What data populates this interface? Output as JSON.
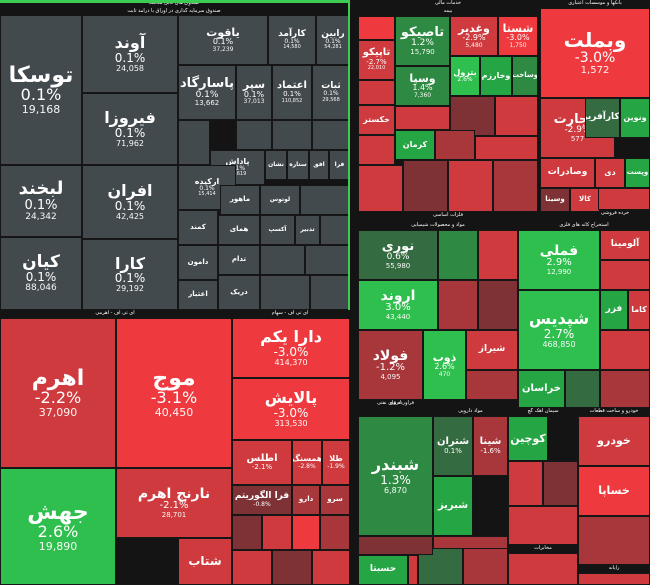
{
  "colors": {
    "neutral": "#424a4e",
    "strong_red": "#ee3a3e",
    "red": "#cf3a3e",
    "mid_red": "#a8373b",
    "dark_red": "#7e3236",
    "light_green": "#2fbf4e",
    "green": "#26a544",
    "mid_green": "#2e8a43",
    "dark_green": "#356b40",
    "background": "#141414",
    "green_border": "#3dcc52"
  },
  "sections": [
    {
      "id": "fund",
      "label": "صندوق های قابل معامله"
    },
    {
      "id": "fund_sub",
      "label": "صندوق سرمایه گذاری در اوراق با درآمد ثابت"
    },
    {
      "id": "finance",
      "label": "خدمات مالی"
    },
    {
      "id": "insurance",
      "label": "بیمه"
    },
    {
      "id": "banks",
      "label": "بانکها و موسسات اعتباری"
    },
    {
      "id": "basic_metals",
      "label": "فلزات اساسی"
    },
    {
      "id": "chem",
      "label": "مواد و محصولات شیمیایی"
    },
    {
      "id": "petro",
      "label": "فراورده های نفتی"
    },
    {
      "id": "metal_ore",
      "label": "استخراج کانه های فلزی"
    },
    {
      "id": "ip",
      "label": "ای تی اف - اهرمی"
    },
    {
      "id": "stocks_etf",
      "label": "ای تی اف - سهام"
    },
    {
      "id": "utilities",
      "label": "انرژی"
    },
    {
      "id": "auto",
      "label": "خودرو و ساخت قطعات"
    },
    {
      "id": "pharma",
      "label": "مواد دارویی"
    },
    {
      "id": "cement",
      "label": "سیمان آهک گچ"
    },
    {
      "id": "food",
      "label": "محصولات غذایی"
    },
    {
      "id": "construction",
      "label": "ساختمان"
    },
    {
      "id": "tech",
      "label": "رایانه"
    },
    {
      "id": "holding",
      "label": "چند رشته ای صنعتی"
    },
    {
      "id": "telecom",
      "label": "مخابرات"
    },
    {
      "id": "transport",
      "label": "حمل و نقل"
    },
    {
      "id": "retail",
      "label": "خرده فروشی"
    }
  ],
  "tiles": [
    {
      "id": "toska",
      "symbol": "توسکا",
      "change": "0.1%",
      "volume": "19,168",
      "tone": "neutral"
    },
    {
      "id": "avand",
      "symbol": "آوند",
      "change": "0.1%",
      "volume": "24,058",
      "tone": "neutral"
    },
    {
      "id": "yaqut",
      "symbol": "یاقوت",
      "change": "0.1%",
      "volume": "37,239",
      "tone": "neutral"
    },
    {
      "id": "karamad",
      "symbol": "کارآمد",
      "change": "0.1%",
      "volume": "14,580",
      "tone": "neutral"
    },
    {
      "id": "rabin",
      "symbol": "رابین",
      "change": "0.1%",
      "volume": "54,281",
      "tone": "neutral"
    },
    {
      "id": "firooza",
      "symbol": "فیروزا",
      "change": "0.1%",
      "volume": "71,962",
      "tone": "neutral"
    },
    {
      "id": "pasargad",
      "symbol": "پاسارگاد",
      "change": "0.1%",
      "volume": "13,662",
      "tone": "neutral"
    },
    {
      "id": "separ",
      "symbol": "سپر",
      "change": "0.1%",
      "volume": "37,013",
      "tone": "neutral"
    },
    {
      "id": "etemad",
      "symbol": "اعتماد",
      "change": "0.1%",
      "volume": "110,852",
      "tone": "neutral"
    },
    {
      "id": "sabat",
      "symbol": "ثبات",
      "change": "0.1%",
      "volume": "29,568",
      "tone": "neutral"
    },
    {
      "id": "labkhand",
      "symbol": "لبخند",
      "change": "0.1%",
      "volume": "24,342",
      "tone": "neutral"
    },
    {
      "id": "afran",
      "symbol": "افران",
      "change": "0.1%",
      "volume": "42,425",
      "tone": "neutral"
    },
    {
      "id": "kian",
      "symbol": "کیان",
      "change": "0.1%",
      "volume": "88,046",
      "tone": "neutral"
    },
    {
      "id": "kara",
      "symbol": "کارا",
      "change": "0.1%",
      "volume": "29,192",
      "tone": "neutral"
    },
    {
      "id": "padash",
      "symbol": "پاداش",
      "change": "0.1%",
      "volume": "22,619",
      "tone": "neutral"
    },
    {
      "id": "arkideh",
      "symbol": "ارکیده",
      "change": "0.1%",
      "volume": "15,414",
      "tone": "neutral"
    },
    {
      "id": "mahoor",
      "symbol": "ماهور",
      "change": "",
      "volume": "",
      "tone": "neutral"
    },
    {
      "id": "nashan",
      "symbol": "نشان",
      "change": "",
      "volume": "",
      "tone": "neutral"
    },
    {
      "id": "setare",
      "symbol": "ستاره",
      "change": "",
      "volume": "",
      "tone": "neutral"
    },
    {
      "id": "ofogh",
      "symbol": "افق",
      "change": "",
      "volume": "",
      "tone": "neutral"
    },
    {
      "id": "fara",
      "symbol": "فرا",
      "change": "",
      "volume": "",
      "tone": "neutral"
    },
    {
      "id": "lotus",
      "symbol": "لوتوس",
      "change": "",
      "volume": "",
      "tone": "neutral"
    },
    {
      "id": "kamand",
      "symbol": "کمند",
      "change": "",
      "volume": "",
      "tone": "neutral"
    },
    {
      "id": "homay",
      "symbol": "همای",
      "change": "",
      "volume": "",
      "tone": "neutral"
    },
    {
      "id": "aksap",
      "symbol": "آکسپ",
      "change": "",
      "volume": "",
      "tone": "neutral"
    },
    {
      "id": "tadbir",
      "symbol": "تدبیر",
      "change": "",
      "volume": "",
      "tone": "neutral"
    },
    {
      "id": "tadam",
      "symbol": "تدام",
      "change": "",
      "volume": "",
      "tone": "neutral"
    },
    {
      "id": "damoon",
      "symbol": "دامون",
      "change": "",
      "volume": "",
      "tone": "neutral"
    },
    {
      "id": "etebar",
      "symbol": "اعتبار",
      "change": "",
      "volume": "",
      "tone": "neutral"
    },
    {
      "id": "darik",
      "symbol": "دریک",
      "change": "",
      "volume": "",
      "tone": "neutral"
    },
    {
      "id": "ahrom",
      "symbol": "اهرم",
      "change": "-2.2%",
      "volume": "37,090",
      "tone": "red"
    },
    {
      "id": "moj",
      "symbol": "موج",
      "change": "-3.1%",
      "volume": "40,450",
      "tone": "strong_red"
    },
    {
      "id": "jahesh",
      "symbol": "جهش",
      "change": "2.6%",
      "volume": "19,890",
      "tone": "light_green"
    },
    {
      "id": "narenj",
      "symbol": "نارنج اهرم",
      "change": "-2.1%",
      "volume": "28,701",
      "tone": "red"
    },
    {
      "id": "shetab",
      "symbol": "شتاب",
      "change": "",
      "volume": "",
      "tone": "red"
    },
    {
      "id": "dara_yekam",
      "symbol": "دارا یکم",
      "change": "-3.0%",
      "volume": "414,370",
      "tone": "strong_red"
    },
    {
      "id": "palayesh",
      "symbol": "پالایش",
      "change": "-3.0%",
      "volume": "313,530",
      "tone": "strong_red"
    },
    {
      "id": "atlas",
      "symbol": "اطلس",
      "change": "-2.1%",
      "volume": "",
      "tone": "red"
    },
    {
      "id": "hamsang",
      "symbol": "همسنگ",
      "change": "-2.8%",
      "volume": "",
      "tone": "red"
    },
    {
      "id": "tala",
      "symbol": "طلا",
      "change": "-1.9%",
      "volume": "",
      "tone": "red"
    },
    {
      "id": "fara_algorithm",
      "symbol": "فرا الگوریتم",
      "change": "-0.8%",
      "volume": "",
      "tone": "dark_red"
    },
    {
      "id": "daroo",
      "symbol": "دارو",
      "change": "",
      "volume": "",
      "tone": "mid_red"
    },
    {
      "id": "sarv",
      "symbol": "سرو",
      "change": "",
      "volume": "",
      "tone": "mid_red"
    },
    {
      "id": "vabmellat",
      "symbol": "وبملت",
      "change": "-3.0%",
      "volume": "1,572",
      "tone": "strong_red"
    },
    {
      "id": "vatejarat",
      "symbol": "وتجارت",
      "change": "-2.9%",
      "volume": "577",
      "tone": "red"
    },
    {
      "id": "vakarafarin",
      "symbol": "وکارآفرین",
      "change": "",
      "volume": "",
      "tone": "dark_green"
    },
    {
      "id": "vanovin",
      "symbol": "ونوین",
      "change": "",
      "volume": "",
      "tone": "green"
    },
    {
      "id": "vasadarat",
      "symbol": "وصادرات",
      "change": "",
      "volume": "",
      "tone": "red"
    },
    {
      "id": "dey",
      "symbol": "دی",
      "change": "",
      "volume": "",
      "tone": "red"
    },
    {
      "id": "vapost",
      "symbol": "وپست",
      "change": "",
      "volume": "",
      "tone": "green"
    },
    {
      "id": "vasina",
      "symbol": "وسینا",
      "change": "",
      "volume": "",
      "tone": "dark_red"
    },
    {
      "id": "kala",
      "symbol": "کالا",
      "change": "",
      "volume": "",
      "tone": "red"
    },
    {
      "id": "taseko",
      "symbol": "تاصیکو",
      "change": "1.2%",
      "volume": "15,790",
      "tone": "mid_green"
    },
    {
      "id": "vaghadir",
      "symbol": "وغدیر",
      "change": "-2.9%",
      "volume": "5,480",
      "tone": "red"
    },
    {
      "id": "shasta",
      "symbol": "شستا",
      "change": "-3.0%",
      "volume": "1,750",
      "tone": "strong_red"
    },
    {
      "id": "tapiko",
      "symbol": "تاپیکو",
      "change": "-2.7%",
      "volume": "22,010",
      "tone": "red"
    },
    {
      "id": "vaspa",
      "symbol": "وسپا",
      "change": "1.4%",
      "volume": "7,360",
      "tone": "mid_green"
    },
    {
      "id": "petrol",
      "symbol": "بترول",
      "change": "2.6%",
      "volume": "",
      "tone": "light_green"
    },
    {
      "id": "vakharazm",
      "symbol": "وخارزم",
      "change": "",
      "volume": "",
      "tone": "green"
    },
    {
      "id": "vasakhat",
      "symbol": "وساخت",
      "change": "",
      "volume": "",
      "tone": "mid_green"
    },
    {
      "id": "khakestar",
      "symbol": "خکستر",
      "change": "",
      "volume": "",
      "tone": "red"
    },
    {
      "id": "kerman",
      "symbol": "کرمان",
      "change": "",
      "volume": "",
      "tone": "green"
    },
    {
      "id": "noori",
      "symbol": "نوری",
      "change": "0.6%",
      "volume": "55,980",
      "tone": "dark_green"
    },
    {
      "id": "arvand",
      "symbol": "اروند",
      "change": "3.0%",
      "volume": "43,440",
      "tone": "light_green"
    },
    {
      "id": "fooled",
      "symbol": "فولاد",
      "change": "-1.2%",
      "volume": "4,095",
      "tone": "mid_red"
    },
    {
      "id": "zob",
      "symbol": "ذوب",
      "change": "2.6%",
      "volume": "470",
      "tone": "light_green"
    },
    {
      "id": "shiraz",
      "symbol": "شیراز",
      "change": "",
      "volume": "",
      "tone": "red"
    },
    {
      "id": "shepdis",
      "symbol": "شپدیس",
      "change": "2.7%",
      "volume": "468,850",
      "tone": "light_green"
    },
    {
      "id": "fameli",
      "symbol": "فملی",
      "change": "2.9%",
      "volume": "12,990",
      "tone": "light_green"
    },
    {
      "id": "aluminium",
      "symbol": "آلومینا",
      "change": "",
      "volume": "",
      "tone": "red"
    },
    {
      "id": "khorasan",
      "symbol": "خراسان",
      "change": "",
      "volume": "",
      "tone": "green"
    },
    {
      "id": "faraz",
      "symbol": "فزر",
      "change": "",
      "volume": "",
      "tone": "green"
    },
    {
      "id": "kamala",
      "symbol": "کاما",
      "change": "",
      "volume": "",
      "tone": "red"
    },
    {
      "id": "shabandar",
      "symbol": "شبندر",
      "change": "1.3%",
      "volume": "6,870",
      "tone": "mid_green"
    },
    {
      "id": "shatran",
      "symbol": "شتران",
      "change": "0.1%",
      "volume": "",
      "tone": "dark_green"
    },
    {
      "id": "shina",
      "symbol": "شینا",
      "change": "-1.6%",
      "volume": "",
      "tone": "mid_red"
    },
    {
      "id": "shabriz",
      "symbol": "شبریز",
      "change": "",
      "volume": "",
      "tone": "green"
    },
    {
      "id": "koochin",
      "symbol": "کوچین",
      "change": "",
      "volume": "",
      "tone": "green"
    },
    {
      "id": "khodro",
      "symbol": "خودرو",
      "change": "",
      "volume": "",
      "tone": "red"
    },
    {
      "id": "khesapa",
      "symbol": "خساپا",
      "change": "",
      "volume": "",
      "tone": "strong_red"
    },
    {
      "id": "hesabta",
      "symbol": "حسبتا",
      "change": "",
      "volume": "",
      "tone": "green"
    }
  ]
}
